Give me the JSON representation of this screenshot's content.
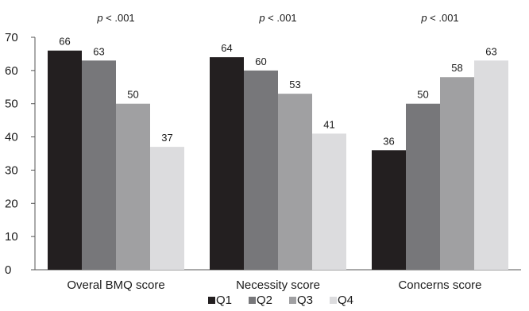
{
  "chart_data": {
    "type": "bar",
    "title": "",
    "xlabel": "",
    "ylabel": "",
    "ylim": [
      0,
      70
    ],
    "yticks": [
      0,
      10,
      20,
      30,
      40,
      50,
      60,
      70
    ],
    "grid": false,
    "legend_position": "bottom",
    "categories": [
      "Overal BMQ score",
      "Necessity score",
      "Concerns score"
    ],
    "annotations": [
      "p < .001",
      "p < .001",
      "p < .001"
    ],
    "series": [
      {
        "name": "Q1",
        "values": [
          66,
          64,
          36
        ],
        "color": "#231f20"
      },
      {
        "name": "Q2",
        "values": [
          63,
          60,
          50
        ],
        "color": "#77777a"
      },
      {
        "name": "Q3",
        "values": [
          50,
          53,
          58
        ],
        "color": "#a0a0a2"
      },
      {
        "name": "Q4",
        "values": [
          37,
          41,
          63
        ],
        "color": "#dcdcde"
      }
    ]
  }
}
